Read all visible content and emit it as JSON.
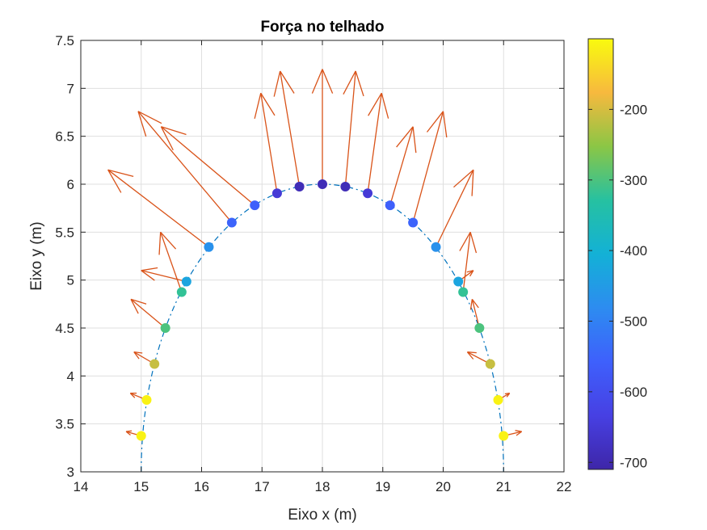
{
  "chart_data": {
    "type": "scatter",
    "title": "Força no telhado",
    "xlabel": "Eixo x (m)",
    "ylabel": "Eixo y (m)",
    "xlim": [
      14,
      22
    ],
    "ylim": [
      3,
      7.5
    ],
    "xticks": [
      "14",
      "15",
      "16",
      "17",
      "18",
      "19",
      "20",
      "21",
      "22"
    ],
    "yticks": [
      "3",
      "3.5",
      "4",
      "4.5",
      "5",
      "5.5",
      "6",
      "6.5",
      "7",
      "7.5"
    ],
    "grid": true,
    "arch": {
      "center_x": 18,
      "center_y": 3,
      "radius_x": 3,
      "radius_y": 3,
      "line_style": "dashed",
      "color": "#0072BD"
    },
    "points": {
      "x": [
        15.0,
        15.09,
        15.22,
        15.4,
        15.67,
        15.75,
        16.12,
        16.5,
        16.88,
        17.25,
        17.62,
        18.0,
        18.38,
        18.75,
        19.12,
        19.5,
        19.88,
        20.25,
        20.33,
        20.6,
        20.78,
        20.91,
        21.0
      ],
      "y": [
        3.375,
        3.75,
        4.125,
        4.5,
        4.875,
        4.985,
        5.345,
        5.6,
        5.78,
        5.905,
        5.975,
        6.0,
        5.975,
        5.905,
        5.78,
        5.6,
        5.345,
        4.985,
        4.875,
        4.5,
        4.125,
        3.75,
        3.375
      ],
      "value": [
        -110,
        -110,
        -210,
        -300,
        -320,
        -430,
        -470,
        -550,
        -560,
        -650,
        -690,
        -690,
        -690,
        -650,
        -560,
        -550,
        -470,
        -430,
        -320,
        -300,
        -210,
        -110,
        -110
      ]
    },
    "force_vectors": {
      "color": "#D95319",
      "tip_x": [
        14.75,
        14.82,
        14.88,
        14.83,
        15.32,
        15.0,
        14.45,
        14.95,
        15.33,
        16.98,
        17.3,
        18.0,
        18.55,
        18.98,
        19.5,
        20.0,
        20.5,
        20.5,
        20.45,
        20.48,
        20.4,
        21.1,
        21.3
      ],
      "tip_y": [
        3.42,
        3.82,
        4.25,
        4.8,
        5.5,
        5.1,
        6.15,
        6.76,
        6.6,
        6.95,
        7.18,
        7.2,
        7.18,
        6.95,
        6.6,
        6.76,
        6.15,
        5.1,
        5.5,
        4.8,
        4.25,
        3.82,
        3.42
      ]
    },
    "colorbar": {
      "location": "right",
      "clim": [
        -710,
        -100
      ],
      "ticks": [
        "-200",
        "-300",
        "-400",
        "-500",
        "-600",
        "-700"
      ],
      "tick_values": [
        -200,
        -300,
        -400,
        -500,
        -600,
        -700
      ],
      "colormap": "parula"
    }
  }
}
